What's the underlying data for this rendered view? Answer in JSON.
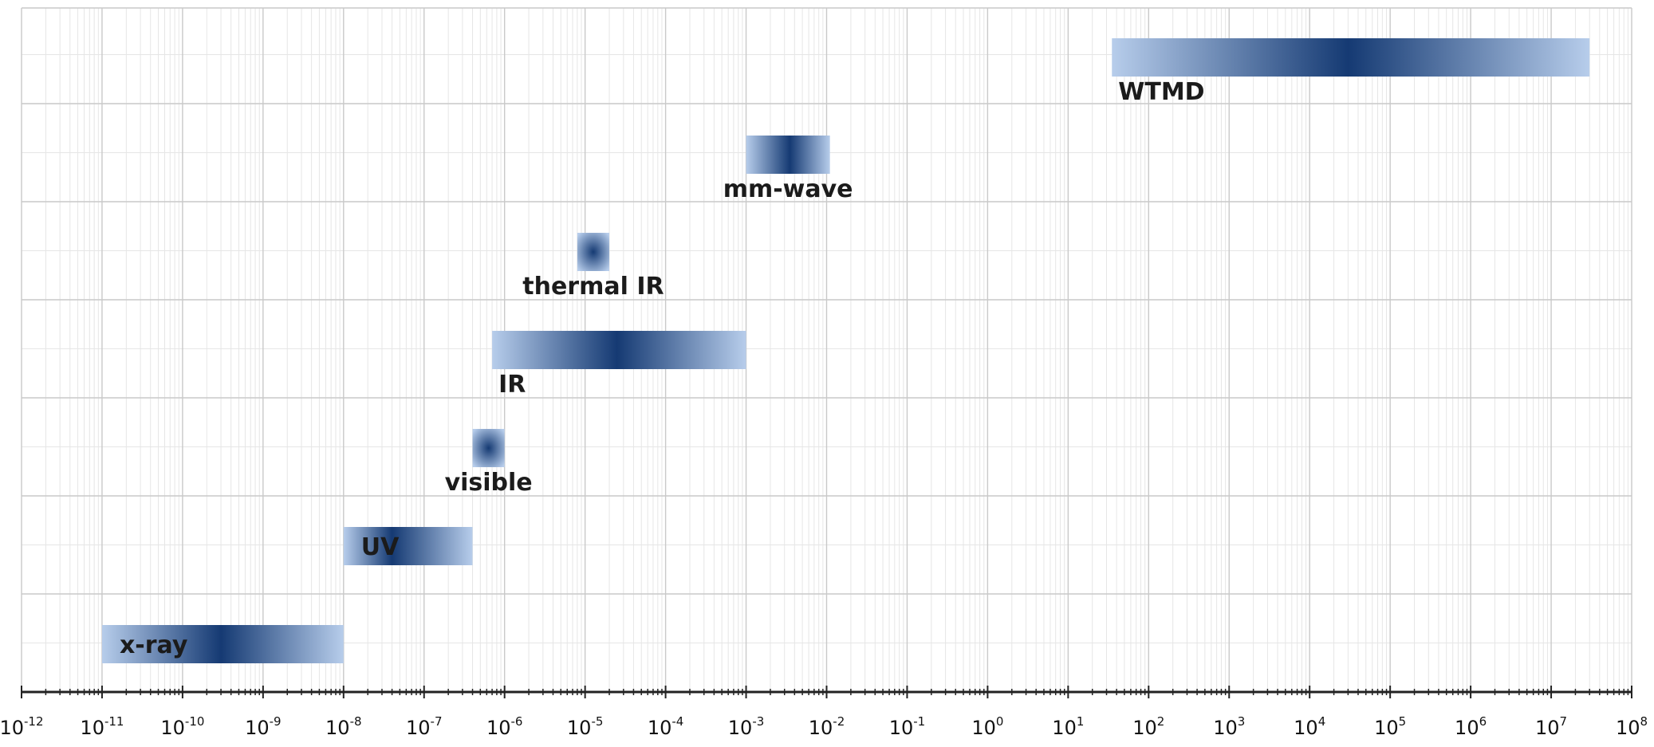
{
  "chart_data": {
    "type": "range-bar",
    "x_scale": "log",
    "xlim": [
      1e-12,
      100000000.0
    ],
    "grid": true,
    "tick_labels": [
      {
        "base": "10",
        "exp": "-12"
      },
      {
        "base": "10",
        "exp": "-11"
      },
      {
        "base": "10",
        "exp": "-10"
      },
      {
        "base": "10",
        "exp": "-9"
      },
      {
        "base": "10",
        "exp": "-8"
      },
      {
        "base": "10",
        "exp": "-7"
      },
      {
        "base": "10",
        "exp": "-6"
      },
      {
        "base": "10",
        "exp": "-5"
      },
      {
        "base": "10",
        "exp": "-4"
      },
      {
        "base": "10",
        "exp": "-3"
      },
      {
        "base": "10",
        "exp": "-2"
      },
      {
        "base": "10",
        "exp": "-1"
      },
      {
        "base": "10",
        "exp": "0"
      },
      {
        "base": "10",
        "exp": "1"
      },
      {
        "base": "10",
        "exp": "2"
      },
      {
        "base": "10",
        "exp": "3"
      },
      {
        "base": "10",
        "exp": "4"
      },
      {
        "base": "10",
        "exp": "5"
      },
      {
        "base": "10",
        "exp": "6"
      },
      {
        "base": "10",
        "exp": "7"
      },
      {
        "base": "10",
        "exp": "8"
      }
    ],
    "bands": [
      {
        "name": "x-ray",
        "x_start": 1e-11,
        "x_end": 1e-08,
        "peak": 3e-10
      },
      {
        "name": "UV",
        "x_start": 1e-08,
        "x_end": 4e-07,
        "peak": 4e-08
      },
      {
        "name": "visible",
        "x_start": 4e-07,
        "x_end": 1e-06,
        "peak": 6.3e-07
      },
      {
        "name": "IR",
        "x_start": 7e-07,
        "x_end": 0.001,
        "peak": 2.5e-05
      },
      {
        "name": "thermal IR",
        "x_start": 8e-06,
        "x_end": 2e-05,
        "peak": 1.3e-05
      },
      {
        "name": "mm-wave",
        "x_start": 0.001,
        "x_end": 0.011,
        "peak": 0.0035
      },
      {
        "name": "WTMD",
        "x_start": 35,
        "x_end": 30000000.0,
        "peak": 30000.0
      }
    ],
    "colors": {
      "band_dark": "#153a73",
      "band_light": "#b7cdeb",
      "grid_major": "#c9c9c9",
      "grid_minor": "#e6e6e6",
      "axis": "#222222"
    }
  }
}
